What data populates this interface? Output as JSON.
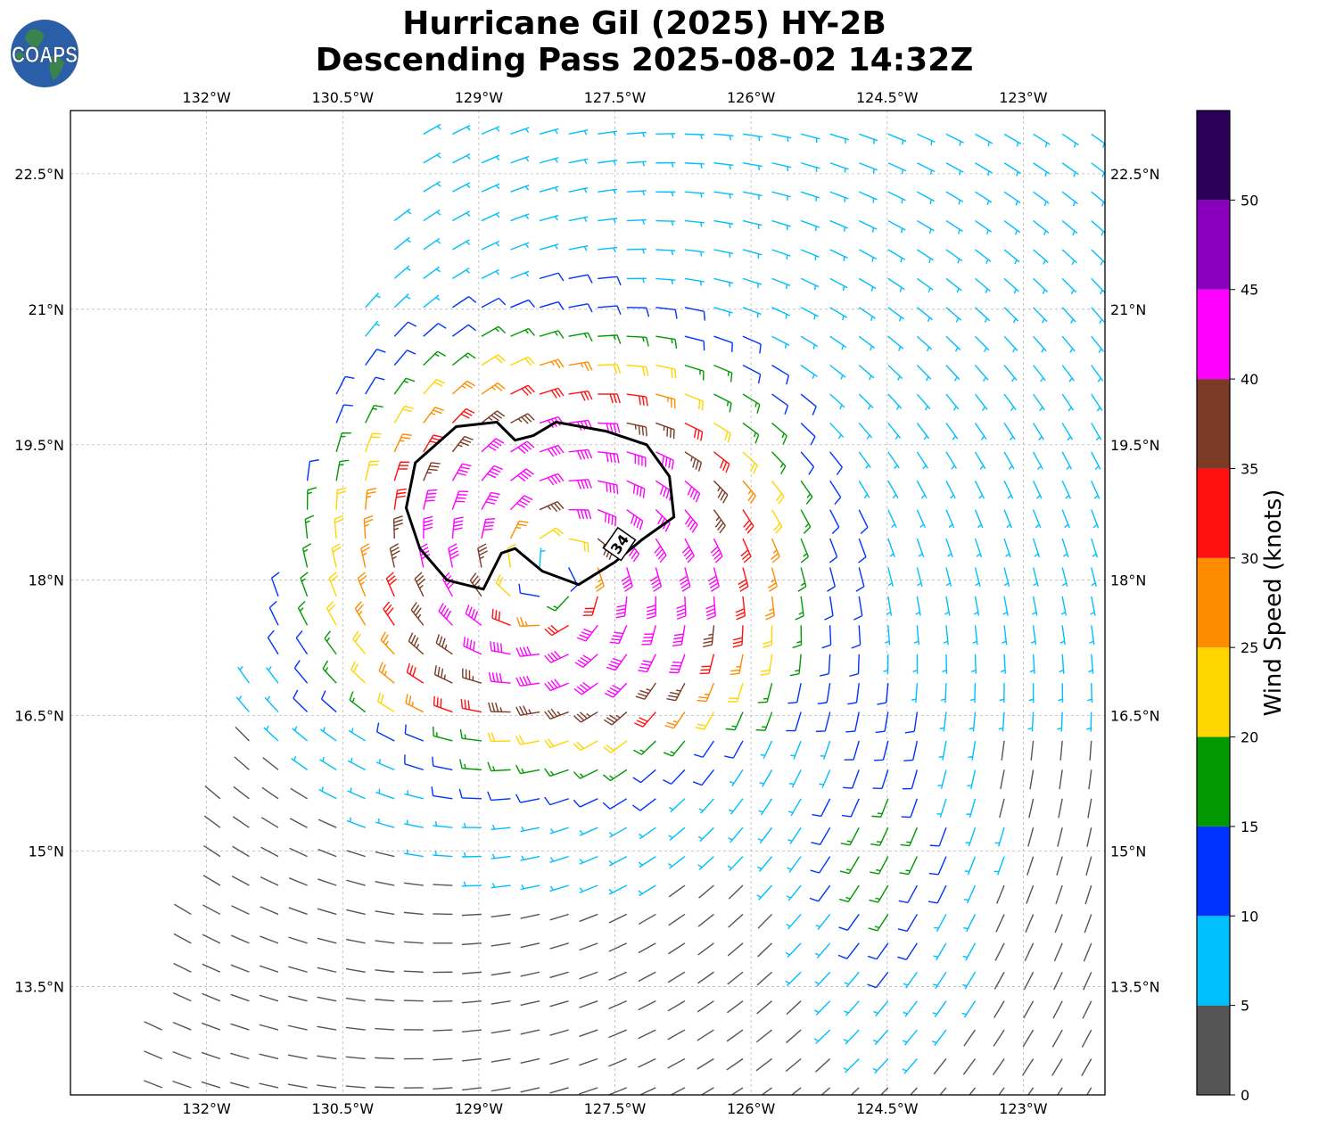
{
  "title": {
    "line1": "Hurricane Gil (2025) HY-2B",
    "line2": "Descending Pass 2025-08-02 14:32Z"
  },
  "logo": {
    "text": "COAPS",
    "icon": "globe-icon"
  },
  "map": {
    "lon_range": [
      -133.5,
      -122.1
    ],
    "lat_range": [
      12.3,
      23.2
    ],
    "storm_center": {
      "lon": -128.2,
      "lat": 18.1
    },
    "grid": true,
    "lon_ticks": [
      {
        "value": -132,
        "label": "132°W"
      },
      {
        "value": -130.5,
        "label": "130.5°W"
      },
      {
        "value": -129,
        "label": "129°W"
      },
      {
        "value": -127.5,
        "label": "127.5°W"
      },
      {
        "value": -126,
        "label": "126°W"
      },
      {
        "value": -124.5,
        "label": "124.5°W"
      },
      {
        "value": -123,
        "label": "123°W"
      }
    ],
    "lat_ticks": [
      {
        "value": 22.5,
        "label": "22.5°N"
      },
      {
        "value": 21,
        "label": "21°N"
      },
      {
        "value": 19.5,
        "label": "19.5°N"
      },
      {
        "value": 18,
        "label": "18°N"
      },
      {
        "value": 16.5,
        "label": "16.5°N"
      },
      {
        "value": 15,
        "label": "15°N"
      },
      {
        "value": 13.5,
        "label": "13.5°N"
      }
    ],
    "contour": {
      "label": "34",
      "label_position": {
        "lon": -127.45,
        "lat": 18.4
      },
      "points": [
        [
          -129.7,
          19.3
        ],
        [
          -129.25,
          19.7
        ],
        [
          -128.8,
          19.75
        ],
        [
          -128.6,
          19.55
        ],
        [
          -128.4,
          19.6
        ],
        [
          -128.15,
          19.75
        ],
        [
          -127.6,
          19.65
        ],
        [
          -127.15,
          19.5
        ],
        [
          -126.9,
          19.15
        ],
        [
          -126.85,
          18.7
        ],
        [
          -127.2,
          18.45
        ],
        [
          -127.5,
          18.2
        ],
        [
          -127.9,
          17.95
        ],
        [
          -128.3,
          18.1
        ],
        [
          -128.6,
          18.35
        ],
        [
          -128.75,
          18.3
        ],
        [
          -128.95,
          17.9
        ],
        [
          -129.35,
          18.0
        ],
        [
          -129.65,
          18.35
        ],
        [
          -129.8,
          18.8
        ],
        [
          -129.7,
          19.3
        ]
      ]
    },
    "swath": {
      "west_edge": [
        [
          -132.7,
          12.3
        ],
        [
          -131.6,
          16.8
        ],
        [
          -130.4,
          20.7
        ],
        [
          -130.0,
          22.0
        ],
        [
          -129.6,
          23.2
        ]
      ],
      "east_edge": [
        [
          -122.1,
          12.3
        ],
        [
          -122.1,
          23.2
        ]
      ]
    }
  },
  "colorbar": {
    "label": "Wind Speed (knots)",
    "range": [
      0,
      55
    ],
    "bins": [
      {
        "from": 0,
        "to": 5,
        "color": "#555555"
      },
      {
        "from": 5,
        "to": 10,
        "color": "#00bfff"
      },
      {
        "from": 10,
        "to": 15,
        "color": "#0033ff"
      },
      {
        "from": 15,
        "to": 20,
        "color": "#009900"
      },
      {
        "from": 20,
        "to": 25,
        "color": "#ffd500"
      },
      {
        "from": 25,
        "to": 30,
        "color": "#ff8c00"
      },
      {
        "from": 30,
        "to": 35,
        "color": "#ff1010"
      },
      {
        "from": 35,
        "to": 40,
        "color": "#7b3a26"
      },
      {
        "from": 40,
        "to": 45,
        "color": "#ff00ff"
      },
      {
        "from": 45,
        "to": 50,
        "color": "#8800bb"
      },
      {
        "from": 50,
        "to": 55,
        "color": "#2a005a"
      }
    ],
    "ticks": [
      {
        "value": 0,
        "label": "0"
      },
      {
        "value": 5,
        "label": "5"
      },
      {
        "value": 10,
        "label": "10"
      },
      {
        "value": 15,
        "label": "15"
      },
      {
        "value": 20,
        "label": "20"
      },
      {
        "value": 25,
        "label": "25"
      },
      {
        "value": 30,
        "label": "30"
      },
      {
        "value": 35,
        "label": "35"
      },
      {
        "value": 40,
        "label": "40"
      },
      {
        "value": 45,
        "label": "45"
      },
      {
        "value": 50,
        "label": "50"
      }
    ]
  }
}
